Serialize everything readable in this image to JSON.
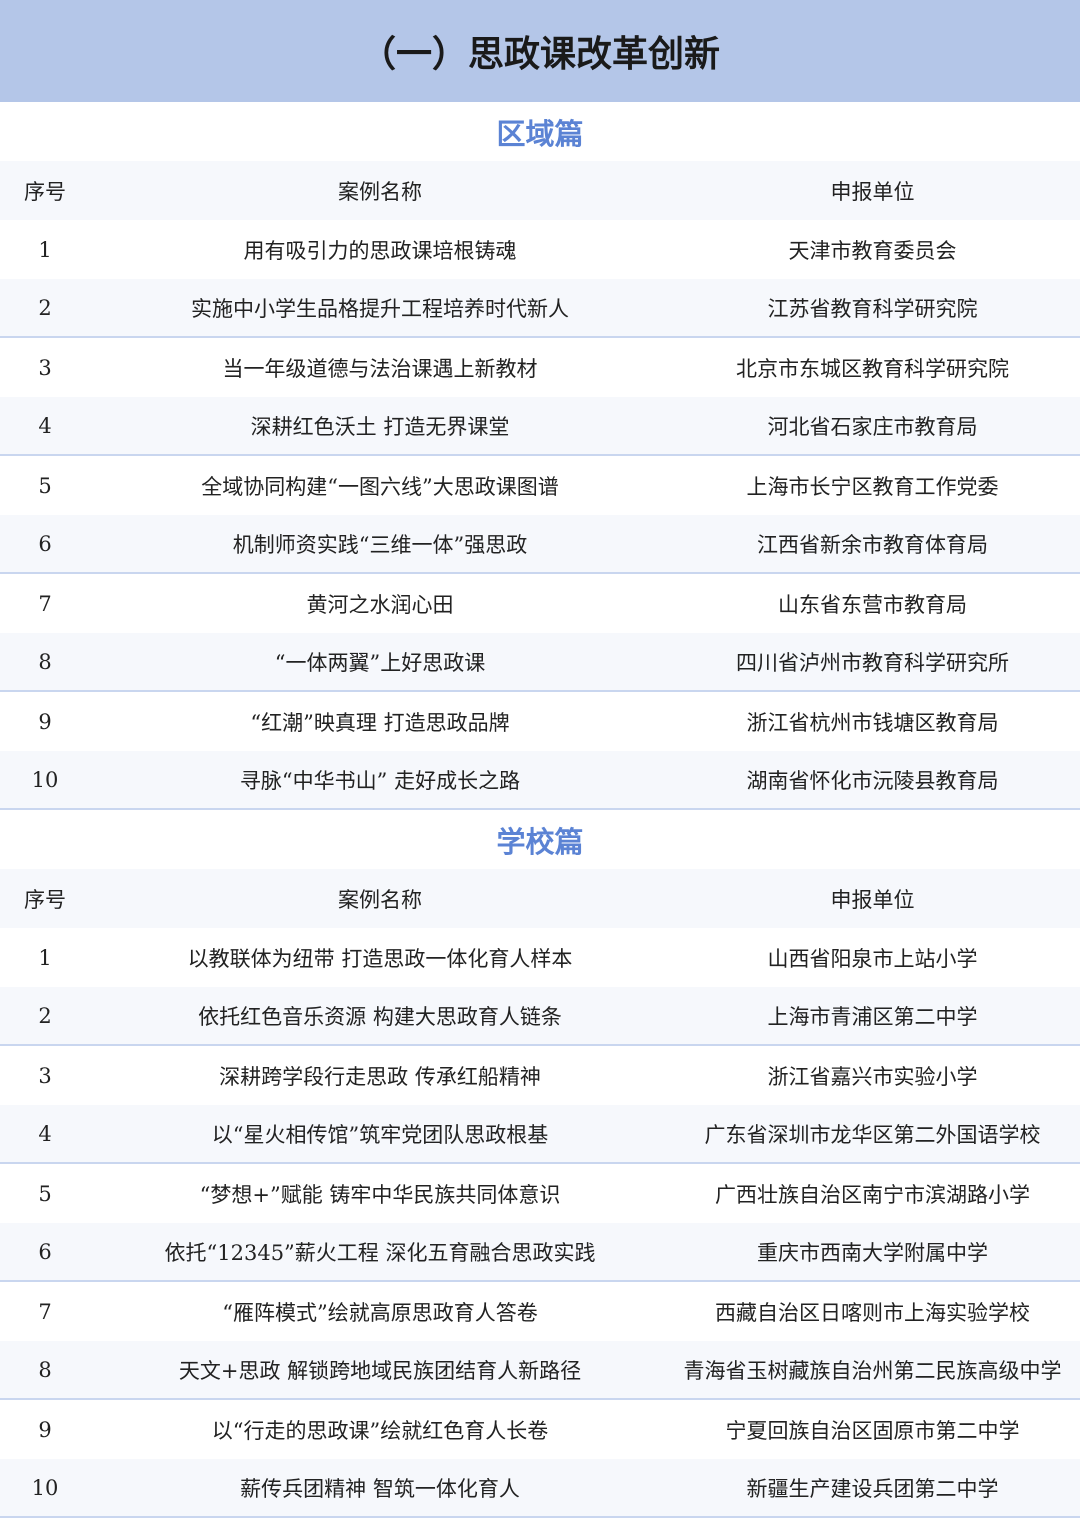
{
  "title": "（一）思政课改革创新",
  "columns": {
    "index": "序号",
    "name": "案例名称",
    "unit": "申报单位"
  },
  "sections": [
    {
      "title": "区域篇",
      "rows": [
        {
          "no": "1",
          "name": "用有吸引力的思政课培根铸魂",
          "unit": "天津市教育委员会"
        },
        {
          "no": "2",
          "name": "实施中小学生品格提升工程培养时代新人",
          "unit": "江苏省教育科学研究院"
        },
        {
          "no": "3",
          "name": "当一年级道德与法治课遇上新教材",
          "unit": "北京市东城区教育科学研究院"
        },
        {
          "no": "4",
          "name": "深耕红色沃土 打造无界课堂",
          "unit": "河北省石家庄市教育局"
        },
        {
          "no": "5",
          "name": "全域协同构建“一图六线”大思政课图谱",
          "unit": "上海市长宁区教育工作党委"
        },
        {
          "no": "6",
          "name": "机制师资实践“三维一体”强思政",
          "unit": "江西省新余市教育体育局"
        },
        {
          "no": "7",
          "name": "黄河之水润心田",
          "unit": "山东省东营市教育局"
        },
        {
          "no": "8",
          "name": "“一体两翼”上好思政课",
          "unit": "四川省泸州市教育科学研究所"
        },
        {
          "no": "9",
          "name": "“红潮”映真理 打造思政品牌",
          "unit": "浙江省杭州市钱塘区教育局"
        },
        {
          "no": "10",
          "name": "寻脉“中华书山” 走好成长之路",
          "unit": "湖南省怀化市沅陵县教育局"
        }
      ]
    },
    {
      "title": "学校篇",
      "rows": [
        {
          "no": "1",
          "name": "以教联体为纽带 打造思政一体化育人样本",
          "unit": "山西省阳泉市上站小学"
        },
        {
          "no": "2",
          "name": "依托红色音乐资源 构建大思政育人链条",
          "unit": "上海市青浦区第二中学"
        },
        {
          "no": "3",
          "name": "深耕跨学段行走思政 传承红船精神",
          "unit": "浙江省嘉兴市实验小学"
        },
        {
          "no": "4",
          "name": "以“星火相传馆”筑牢党团队思政根基",
          "unit": "广东省深圳市龙华区第二外国语学校"
        },
        {
          "no": "5",
          "name": "“梦想+”赋能 铸牢中华民族共同体意识",
          "unit": "广西壮族自治区南宁市滨湖路小学"
        },
        {
          "no": "6",
          "name": "依托“12345”薪火工程 深化五育融合思政实践",
          "unit": "重庆市西南大学附属中学"
        },
        {
          "no": "7",
          "name": "“雁阵模式”绘就高原思政育人答卷",
          "unit": "西藏自治区日喀则市上海实验学校"
        },
        {
          "no": "8",
          "name": "天文+思政 解锁跨地域民族团结育人新路径",
          "unit": "青海省玉树藏族自治州第二民族高级中学"
        },
        {
          "no": "9",
          "name": "以“行走的思政课”绘就红色育人长卷",
          "unit": "宁夏回族自治区固原市第二中学"
        },
        {
          "no": "10",
          "name": "薪传兵团精神 智筑一体化育人",
          "unit": "新疆生产建设兵团第二中学"
        }
      ]
    }
  ]
}
